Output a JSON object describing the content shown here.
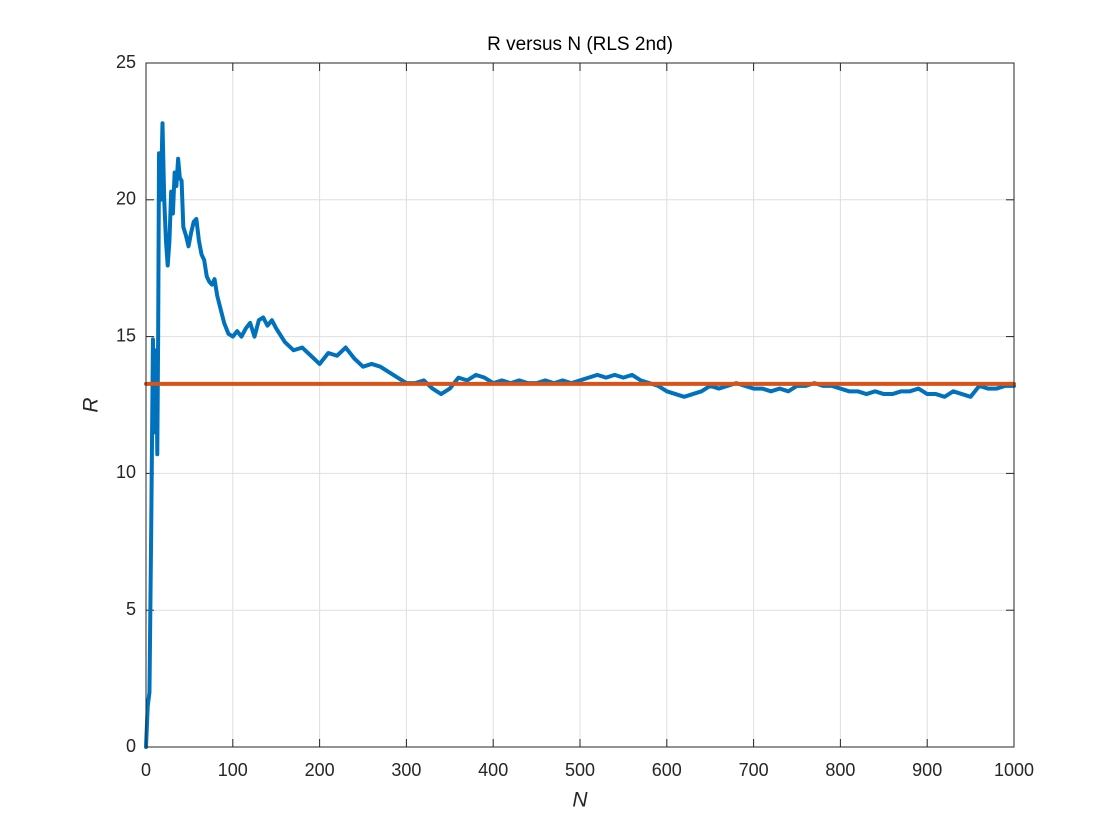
{
  "chart_data": {
    "type": "line",
    "title": "R versus N (RLS 2nd)",
    "xlabel": "N",
    "ylabel": "R",
    "xlim": [
      0,
      1000
    ],
    "ylim": [
      0,
      25
    ],
    "xticks": [
      0,
      100,
      200,
      300,
      400,
      500,
      600,
      700,
      800,
      900,
      1000
    ],
    "yticks": [
      0,
      5,
      10,
      15,
      20,
      25
    ],
    "grid": true,
    "series": [
      {
        "color": "#0072bd",
        "x": [
          0,
          2,
          4,
          6,
          8,
          10,
          12,
          13,
          14,
          15,
          17,
          19,
          21,
          23,
          25,
          27,
          29,
          31,
          33,
          35,
          37,
          39,
          41,
          43,
          46,
          49,
          52,
          55,
          58,
          61,
          64,
          67,
          70,
          73,
          76,
          79,
          82,
          86,
          90,
          95,
          100,
          105,
          110,
          115,
          120,
          125,
          130,
          135,
          140,
          145,
          150,
          160,
          170,
          180,
          190,
          200,
          210,
          220,
          230,
          240,
          250,
          260,
          270,
          280,
          290,
          300,
          310,
          320,
          330,
          340,
          350,
          360,
          370,
          380,
          390,
          400,
          410,
          420,
          430,
          440,
          450,
          460,
          470,
          480,
          490,
          500,
          510,
          520,
          530,
          540,
          550,
          560,
          570,
          580,
          590,
          600,
          610,
          620,
          630,
          640,
          650,
          660,
          670,
          680,
          690,
          700,
          710,
          720,
          730,
          740,
          750,
          760,
          770,
          780,
          790,
          800,
          810,
          820,
          830,
          840,
          850,
          860,
          870,
          880,
          890,
          900,
          910,
          920,
          930,
          940,
          950,
          960,
          970,
          980,
          990,
          1000
        ],
        "values": [
          0,
          1.5,
          2,
          8,
          14.9,
          11.5,
          14.5,
          10.7,
          15,
          21.7,
          20,
          22.8,
          20,
          18.5,
          17.6,
          18.5,
          20.3,
          19.5,
          21,
          20.5,
          21.5,
          20.8,
          20.7,
          19,
          18.7,
          18.3,
          18.8,
          19.2,
          19.3,
          18.5,
          18,
          17.8,
          17.2,
          17,
          16.9,
          17.1,
          16.5,
          16,
          15.5,
          15.1,
          15,
          15.2,
          15,
          15.3,
          15.5,
          15,
          15.6,
          15.7,
          15.4,
          15.6,
          15.3,
          14.8,
          14.5,
          14.6,
          14.3,
          14,
          14.4,
          14.3,
          14.6,
          14.2,
          13.9,
          14,
          13.9,
          13.7,
          13.5,
          13.3,
          13.3,
          13.4,
          13.1,
          12.9,
          13.1,
          13.5,
          13.4,
          13.6,
          13.5,
          13.3,
          13.4,
          13.3,
          13.4,
          13.3,
          13.3,
          13.4,
          13.3,
          13.4,
          13.3,
          13.4,
          13.5,
          13.6,
          13.5,
          13.6,
          13.5,
          13.6,
          13.4,
          13.3,
          13.2,
          13,
          12.9,
          12.8,
          12.9,
          13,
          13.2,
          13.1,
          13.2,
          13.3,
          13.2,
          13.1,
          13.1,
          13,
          13.1,
          13,
          13.2,
          13.2,
          13.3,
          13.2,
          13.2,
          13.1,
          13,
          13,
          12.9,
          13,
          12.9,
          12.9,
          13,
          13,
          13.1,
          12.9,
          12.9,
          12.8,
          13,
          12.9,
          12.8,
          13.2,
          13.1,
          13.1,
          13.2,
          13.2
        ]
      },
      {
        "color": "#d95319",
        "x": [
          0,
          1000
        ],
        "values": [
          13.27,
          13.27
        ]
      }
    ]
  }
}
